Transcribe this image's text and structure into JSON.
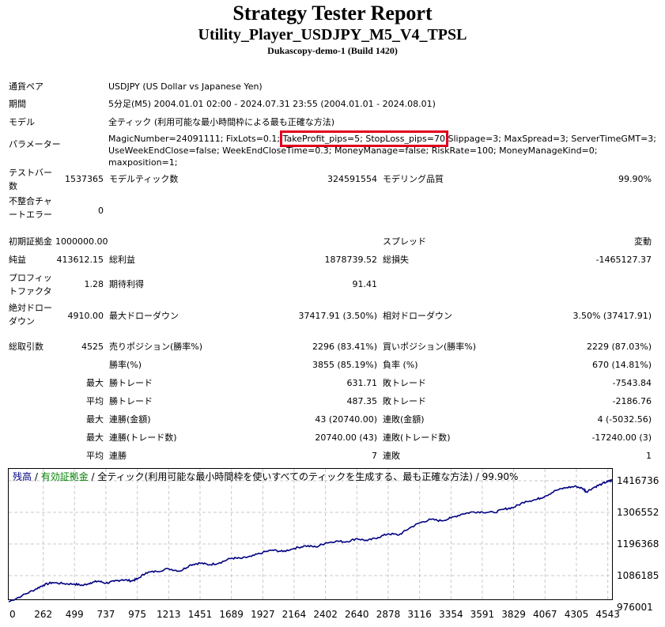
{
  "header": {
    "title": "Strategy Tester Report",
    "ea_name": "Utility_Player_USDJPY_M5_V4_TPSL",
    "server": "Dukascopy-demo-1 (Build 1420)"
  },
  "info": {
    "symbol_label": "通貨ペア",
    "symbol_value": "USDJPY (US Dollar vs Japanese Yen)",
    "period_label": "期間",
    "period_value": "5分足(M5) 2004.01.01 02:00 - 2024.07.31 23:55 (2004.01.01 - 2024.08.01)",
    "model_label": "モデル",
    "model_value": "全ティック (利用可能な最小時間枠による最も正確な方法)",
    "params_label": "パラメーター",
    "params_part1": "MagicNumber=24091111; FixLots=0.1; ",
    "params_highlight": "TakeProfit_pips=5; StopLoss_pips=70",
    "params_part2": " Slippage=3; MaxSpread=3; ServerTimeGMT=3; UseWeekEndClose=false; WeekEndCloseTime=0.3; MoneyManage=false; RiskRate=100; MoneyManageKind=0; maxposition=1;"
  },
  "stats": {
    "bars_label": "テストバー数",
    "bars_value": "1537365",
    "ticks_label": "モデルティック数",
    "ticks_value": "324591554",
    "quality_label": "モデリング品質",
    "quality_value": "99.90%",
    "mismatch_label": "不整合チャートエラー",
    "mismatch_value": "0",
    "deposit_label": "初期証拠金",
    "deposit_value": "1000000.00",
    "spread_label": "スプレッド",
    "spread_value": "変動",
    "net_label": "純益",
    "net_value": "413612.15",
    "gross_profit_label": "総利益",
    "gross_profit_value": "1878739.52",
    "gross_loss_label": "総損失",
    "gross_loss_value": "-1465127.37",
    "pf_label": "プロフィットファクタ",
    "pf_value": "1.28",
    "expected_label": "期待利得",
    "expected_value": "91.41",
    "abs_dd_label": "絶対ドローダウン",
    "abs_dd_value": "4910.00",
    "max_dd_label": "最大ドローダウン",
    "max_dd_value": "37417.91 (3.50%)",
    "rel_dd_label": "相対ドローダウン",
    "rel_dd_value": "3.50% (37417.91)",
    "trades_label": "総取引数",
    "trades_value": "4525",
    "short_label": "売りポジション(勝率%)",
    "short_value": "2296 (83.41%)",
    "long_label": "買いポジション(勝率%)",
    "long_value": "2229 (87.03%)",
    "win_rate_label": "勝率(%)",
    "win_rate_value": "3855 (85.19%)",
    "loss_rate_label": "負率 (%)",
    "loss_rate_value": "670 (14.81%)",
    "max_word": "最大",
    "avg_word": "平均",
    "largest_win_label": "勝トレード",
    "largest_win_value": "631.71",
    "largest_loss_label": "敗トレード",
    "largest_loss_value": "-7543.84",
    "avg_win_label": "勝トレード",
    "avg_win_value": "487.35",
    "avg_loss_label": "敗トレード",
    "avg_loss_value": "-2186.76",
    "max_consec_wins_label": "連勝(金額)",
    "max_consec_wins_value": "43 (20740.00)",
    "max_consec_losses_label": "連敗(金額)",
    "max_consec_losses_value": "4 (-5032.56)",
    "max_consec_profit_label": "連勝(トレード数)",
    "max_consec_profit_value": "20740.00 (43)",
    "max_consec_loss_label": "連敗(トレード数)",
    "max_consec_loss_value": "-17240.00 (3)",
    "avg_consec_wins_label": "連勝",
    "avg_consec_wins_value": "7",
    "avg_consec_losses_label": "連敗",
    "avg_consec_losses_value": "1"
  },
  "chart_legend": {
    "balance": "残高",
    "sep1": " / ",
    "equity": "有効証拠金",
    "sep2": " / ",
    "rest": "全ティック(利用可能な最小時間枠を使いすべてのティックを生成する、最も正確な方法) / 99.90%"
  },
  "colors": {
    "balance": "#000080",
    "equity": "#008000",
    "highlight": "#e0001b",
    "grid": "#c8c8c8"
  },
  "chart_data": {
    "type": "line",
    "x_ticks": [
      "0",
      "262",
      "499",
      "737",
      "975",
      "1213",
      "1451",
      "1689",
      "1927",
      "2164",
      "2402",
      "2640",
      "2878",
      "3116",
      "3354",
      "3591",
      "3829",
      "4067",
      "4305",
      "4543"
    ],
    "y_ticks": [
      "1416736",
      "1306552",
      "1196368",
      "1086185",
      "976001"
    ],
    "xlim": [
      0,
      4575
    ],
    "ylim": [
      976001,
      1416736
    ],
    "grid": true,
    "series": [
      {
        "name": "残高",
        "x": [
          0,
          100,
          200,
          262,
          330,
          420,
          499,
          560,
          620,
          680,
          737,
          800,
          860,
          930,
          975,
          1040,
          1120,
          1213,
          1300,
          1380,
          1451,
          1520,
          1600,
          1689,
          1760,
          1840,
          1927,
          2000,
          2080,
          2164,
          2250,
          2330,
          2402,
          2480,
          2560,
          2640,
          2720,
          2800,
          2878,
          2960,
          3040,
          3116,
          3200,
          3280,
          3354,
          3440,
          3520,
          3591,
          3680,
          3760,
          3829,
          3920,
          4000,
          4067,
          4150,
          4230,
          4305,
          4360,
          4380,
          4440,
          4500,
          4543,
          4575
        ],
        "y": [
          995000,
          1016000,
          1038000,
          1053000,
          1062000,
          1058000,
          1057000,
          1052000,
          1061000,
          1067000,
          1060000,
          1066000,
          1072000,
          1068000,
          1074000,
          1096000,
          1101000,
          1110000,
          1102000,
          1124000,
          1130000,
          1124000,
          1131000,
          1147000,
          1146000,
          1153000,
          1167000,
          1175000,
          1170000,
          1181000,
          1190000,
          1186000,
          1200000,
          1206000,
          1204000,
          1215000,
          1208000,
          1219000,
          1232000,
          1228000,
          1252000,
          1270000,
          1282000,
          1277000,
          1287000,
          1301000,
          1308000,
          1308000,
          1306000,
          1318000,
          1324000,
          1345000,
          1351000,
          1363000,
          1383000,
          1393000,
          1397000,
          1388000,
          1378000,
          1394000,
          1406000,
          1414000,
          1418000
        ]
      }
    ]
  }
}
